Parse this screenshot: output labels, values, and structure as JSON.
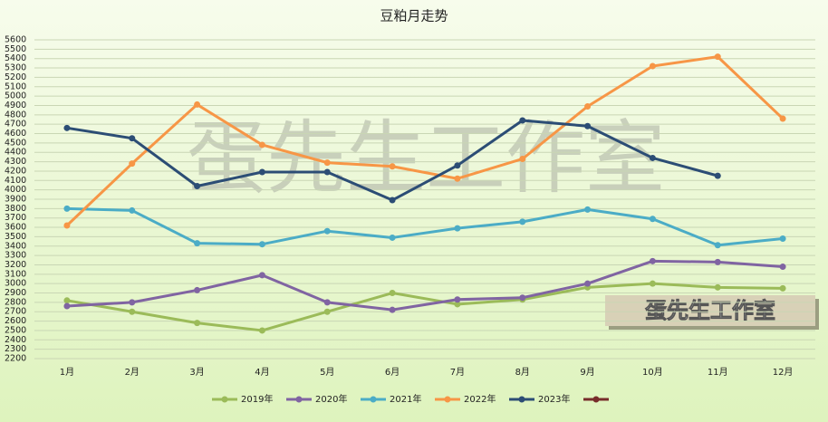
{
  "chart_data": {
    "type": "line",
    "title": "豆粕月走势",
    "annotations": [
      "蛋先生工作室",
      "蛋先生工作室"
    ],
    "categories": [
      "1月",
      "2月",
      "3月",
      "4月",
      "5月",
      "6月",
      "7月",
      "8月",
      "9月",
      "10月",
      "11月",
      "12月"
    ],
    "series": [
      {
        "name": "2019年",
        "color": "#9bbb59",
        "values": [
          2820,
          2700,
          2580,
          2500,
          2700,
          2900,
          2780,
          2830,
          2960,
          3000,
          2960,
          2950
        ]
      },
      {
        "name": "2020年",
        "color": "#8064a2",
        "values": [
          2760,
          2800,
          2930,
          3090,
          2800,
          2720,
          2830,
          2850,
          3000,
          3240,
          3230,
          3180
        ]
      },
      {
        "name": "2021年",
        "color": "#4bacc6",
        "values": [
          3800,
          3780,
          3430,
          3420,
          3560,
          3490,
          3590,
          3660,
          3790,
          3690,
          3410,
          3480
        ]
      },
      {
        "name": "2022年",
        "color": "#f79646",
        "values": [
          3620,
          4280,
          4910,
          4480,
          4290,
          4250,
          4120,
          4330,
          4890,
          5320,
          5420,
          4760
        ]
      },
      {
        "name": "2023年",
        "color": "#2c4d75",
        "values": [
          4660,
          4550,
          4040,
          4190,
          4190,
          3890,
          4260,
          4740,
          4680,
          4340,
          4150,
          null
        ]
      },
      {
        "color": "#772c2a",
        "values": [
          null,
          null,
          null,
          null,
          null,
          null,
          null,
          null,
          null,
          null,
          null,
          null
        ]
      }
    ],
    "ylim": [
      2200,
      5600
    ],
    "yticks": [
      2200,
      2300,
      2400,
      2500,
      2600,
      2700,
      2800,
      2900,
      3000,
      3100,
      3200,
      3300,
      3400,
      3500,
      3600,
      3700,
      3800,
      3900,
      4000,
      4100,
      4200,
      4300,
      4400,
      4500,
      4600,
      4700,
      4800,
      4900,
      5000,
      5100,
      5200,
      5300,
      5400,
      5500,
      5600
    ],
    "grid": true,
    "legend": "bottom"
  }
}
